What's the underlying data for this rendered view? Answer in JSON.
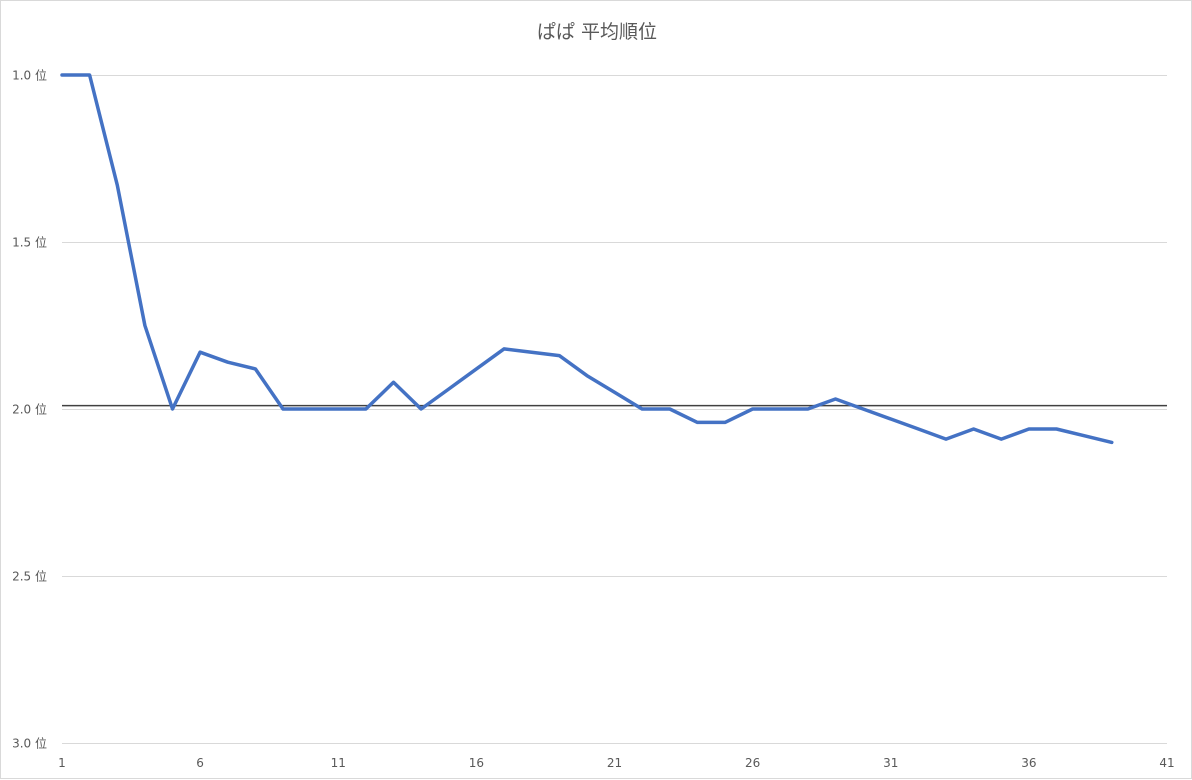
{
  "chart_data": {
    "type": "line",
    "title": "ぱぱ 平均順位",
    "xlabel": "",
    "ylabel": "",
    "xlim": [
      1,
      41
    ],
    "ylim": [
      1.0,
      3.0
    ],
    "y_inverted": true,
    "x_ticks": [
      1,
      6,
      11,
      16,
      21,
      26,
      31,
      36,
      41
    ],
    "y_ticks": [
      1.0,
      1.5,
      2.0,
      2.5,
      3.0
    ],
    "y_tick_labels": [
      "1.0 位",
      "1.5 位",
      "2.0 位",
      "2.5 位",
      "3.0 位"
    ],
    "grid": true,
    "legend": "none",
    "reference_line": {
      "y": 1.99,
      "color": "#404040"
    },
    "series": [
      {
        "color": "#4472C4",
        "x": [
          1,
          2,
          3,
          4,
          5,
          6,
          7,
          8,
          9,
          10,
          11,
          12,
          13,
          14,
          15,
          16,
          17,
          18,
          19,
          20,
          21,
          22,
          23,
          24,
          25,
          26,
          27,
          28,
          29,
          30,
          31,
          32,
          33,
          34,
          35,
          36,
          37,
          38,
          39
        ],
        "values": [
          1.0,
          1.0,
          1.33,
          1.75,
          2.0,
          1.83,
          1.86,
          1.88,
          2.0,
          2.0,
          2.0,
          2.0,
          1.92,
          2.0,
          1.94,
          1.88,
          1.82,
          1.83,
          1.84,
          1.9,
          1.95,
          2.0,
          2.0,
          2.04,
          2.04,
          2.0,
          2.0,
          2.0,
          1.97,
          2.0,
          2.03,
          2.06,
          2.09,
          2.06,
          2.09,
          2.06,
          2.06,
          2.08,
          2.1
        ]
      }
    ]
  }
}
